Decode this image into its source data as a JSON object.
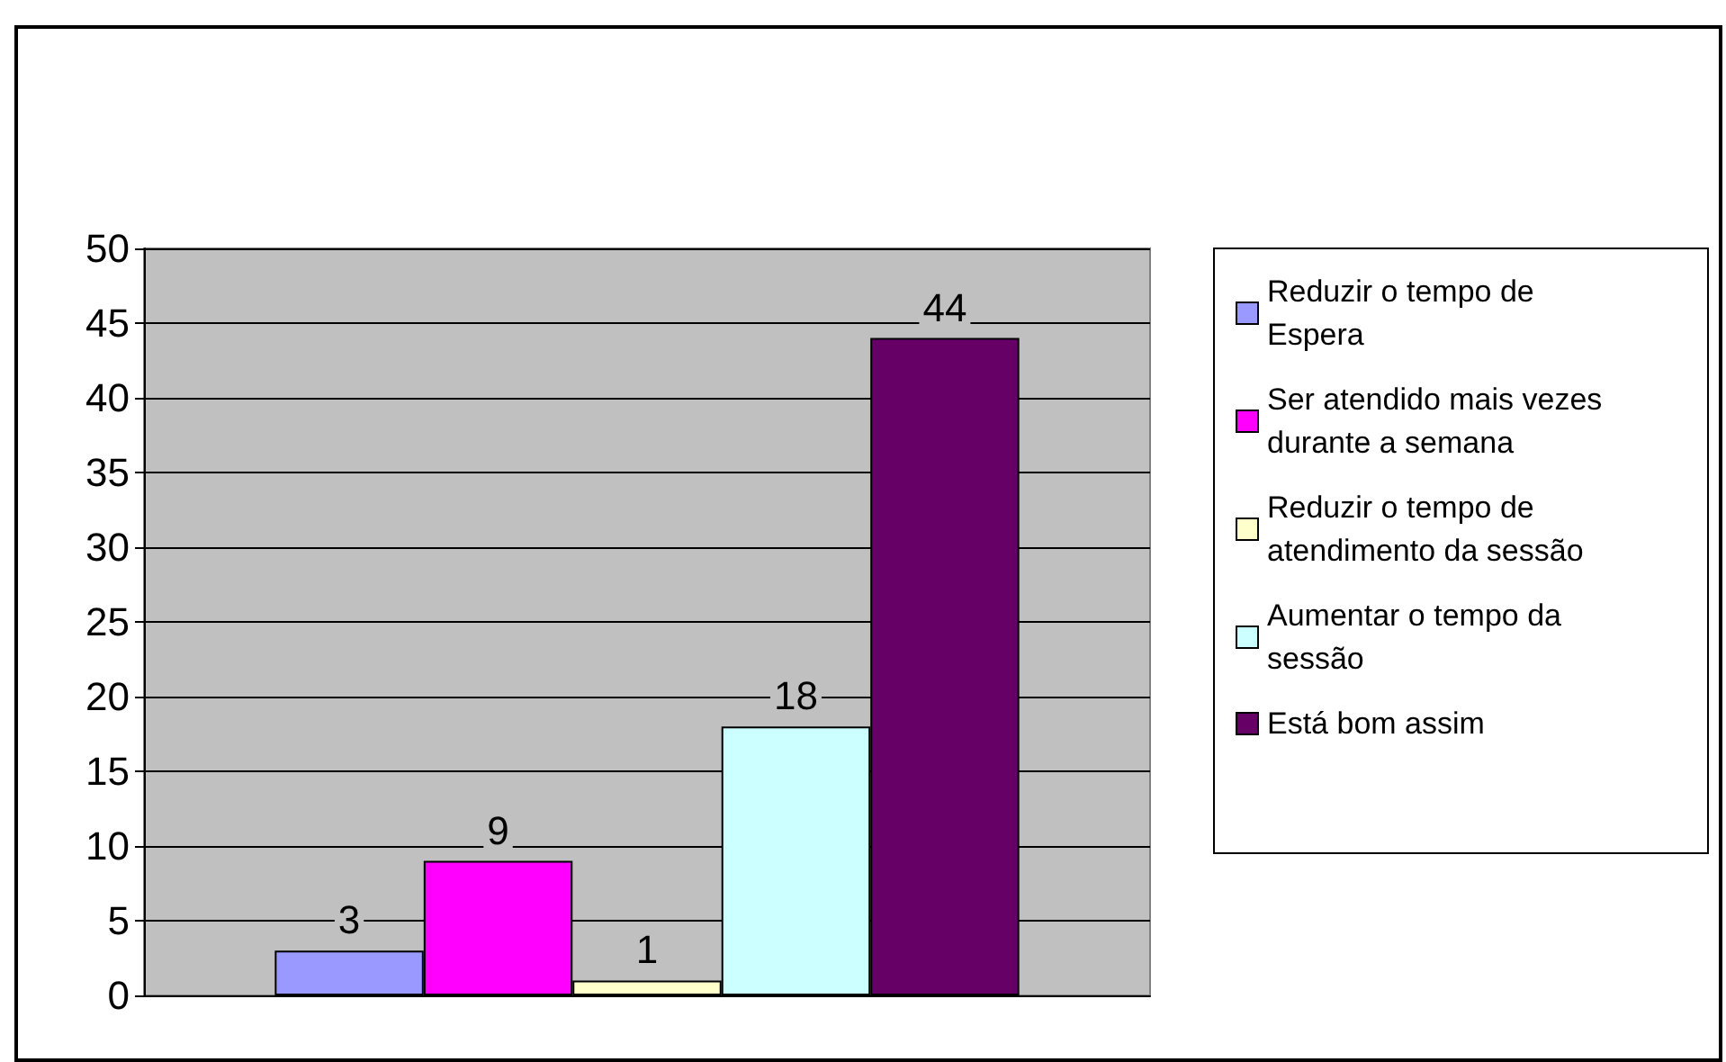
{
  "chart_data": {
    "type": "bar",
    "categories": [
      null
    ],
    "series": [
      {
        "name": "Reduzir o tempo de Espera",
        "color": "#9999ff",
        "values": [
          3
        ]
      },
      {
        "name": "Ser atendido mais vezes durante a semana",
        "color": "#ff00ff",
        "values": [
          9
        ]
      },
      {
        "name": "Reduzir o tempo de atendimento da sessão",
        "color": "#ffffcc",
        "values": [
          1
        ]
      },
      {
        "name": "Aumentar o tempo da sessão",
        "color": "#ccffff",
        "values": [
          18
        ]
      },
      {
        "name": "Está bom assim",
        "color": "#660066",
        "values": [
          44
        ]
      }
    ],
    "ylim": [
      0,
      50
    ],
    "yticks": [
      0,
      5,
      10,
      15,
      20,
      25,
      30,
      35,
      40,
      45,
      50
    ],
    "grid": "y",
    "legend": "right",
    "data_labels": true
  }
}
